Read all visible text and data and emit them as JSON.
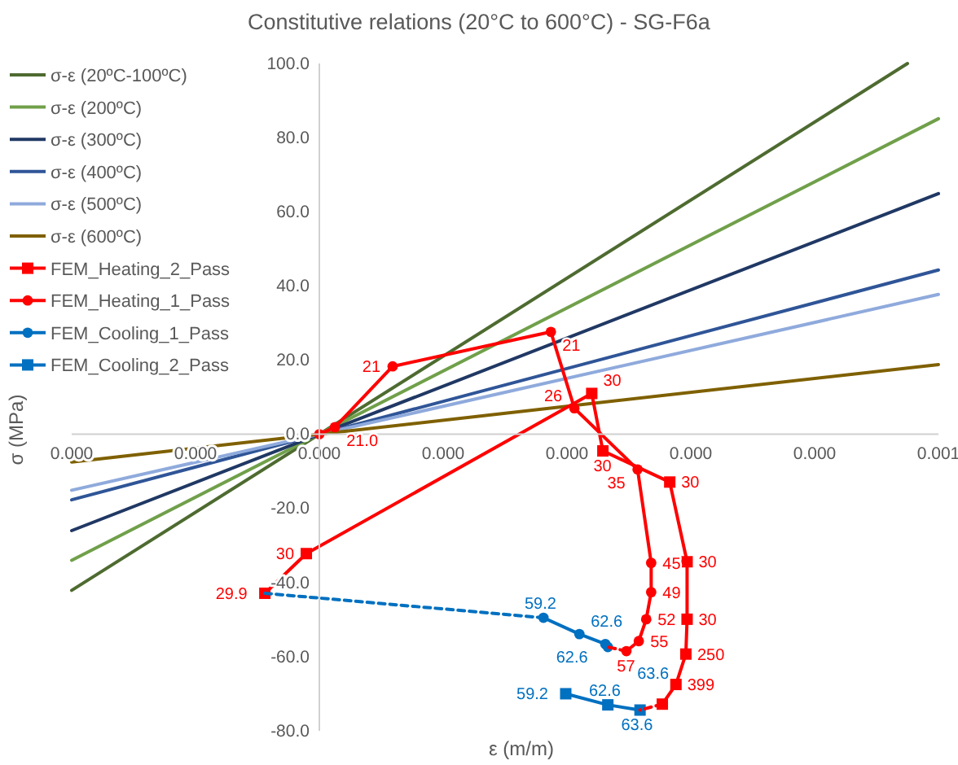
{
  "chart_data": {
    "type": "line",
    "title": "Constitutive relations (20°C to 600°C) - SG-F6a",
    "xlabel": "ε (m/m)",
    "ylabel": "σ (MPa)",
    "xlim": [
      -0.0002,
      0.0005
    ],
    "xticks": [
      {
        "value": -0.0002,
        "label": "0.000"
      },
      {
        "value": -0.0001,
        "label": "0.000"
      },
      {
        "value": 0,
        "label": "0.000"
      },
      {
        "value": 0.0001,
        "label": "0.000"
      },
      {
        "value": 0.0002,
        "label": "0.000"
      },
      {
        "value": 0.0003,
        "label": "0.000"
      },
      {
        "value": 0.0004,
        "label": "0.000"
      },
      {
        "value": 0.0005,
        "label": "0.001"
      }
    ],
    "ylim": [
      -80,
      100
    ],
    "yticks": [
      {
        "value": -80,
        "label": "-80.0"
      },
      {
        "value": -60,
        "label": "-60.0"
      },
      {
        "value": -40,
        "label": "-40.0"
      },
      {
        "value": -20,
        "label": "-20.0"
      },
      {
        "value": 0,
        "label": "0.0"
      },
      {
        "value": 20,
        "label": "20.0"
      },
      {
        "value": 40,
        "label": "40.0"
      },
      {
        "value": 60,
        "label": "60.0"
      },
      {
        "value": 80,
        "label": "80.0"
      },
      {
        "value": 100,
        "label": "100.0"
      }
    ],
    "grid": false,
    "legend": "left",
    "series": [
      {
        "name": "σ-ε (20ºC-100ºC)",
        "color": "#4e6b30",
        "marker": "none",
        "x": [
          -0.0002,
          0.000475
        ],
        "values": [
          -42.1,
          100
        ]
      },
      {
        "name": "σ-ε (200ºC)",
        "color": "#70a04a",
        "marker": "none",
        "x": [
          -0.0002,
          0.0005
        ],
        "values": [
          -34.0,
          85.1
        ]
      },
      {
        "name": "σ-ε (300ºC)",
        "color": "#203864",
        "marker": "none",
        "x": [
          -0.0002,
          0.0005
        ],
        "values": [
          -26.0,
          64.9
        ]
      },
      {
        "name": "σ-ε (400ºC)",
        "color": "#2f5597",
        "marker": "none",
        "x": [
          -0.0002,
          0.0005
        ],
        "values": [
          -17.7,
          44.3
        ]
      },
      {
        "name": "σ-ε (500ºC)",
        "color": "#8faadc",
        "marker": "none",
        "x": [
          -0.0002,
          0.0005
        ],
        "values": [
          -15.1,
          37.7
        ]
      },
      {
        "name": "σ-ε (600ºC)",
        "color": "#7f6000",
        "marker": "none",
        "x": [
          -0.0002,
          0.0005
        ],
        "values": [
          -7.5,
          18.8
        ]
      },
      {
        "name": "FEM_Heating_2_Pass",
        "color": "#ff0000",
        "marker": "square",
        "x": [
          -4.4e-05,
          -1.05e-05,
          0.00022,
          0.000229,
          0.000283,
          0.000297,
          0.000297,
          0.000296,
          0.000288,
          0.000277
        ],
        "values": [
          -42.9,
          -32.2,
          11.0,
          -4.5,
          -12.9,
          -34.4,
          -49.9,
          -59.3,
          -67.5,
          -72.8
        ]
      },
      {
        "name": "FEM_Heating_1_Pass",
        "color": "#ff0000",
        "marker": "circle",
        "x": [
          0,
          1.26e-05,
          5.92e-05,
          0.000187,
          0.000206,
          0.000257,
          0.000268,
          0.000268,
          0.000264,
          0.000258,
          0.000248
        ],
        "values": [
          0,
          1.9,
          18.3,
          27.6,
          7.0,
          -9.5,
          -34.7,
          -42.6,
          -49.9,
          -55.8,
          -58.5
        ]
      },
      {
        "name": "FEM_Cooling_1_Pass",
        "color": "#0070c0",
        "marker": "circle",
        "x": [
          0.000181,
          0.00021,
          0.000231,
          0.000233
        ],
        "values": [
          -49.5,
          -53.9,
          -56.6,
          -57.4
        ]
      },
      {
        "name": "FEM_Cooling_2_Pass",
        "color": "#0070c0",
        "marker": "square",
        "x": [
          0.000199,
          0.000233,
          0.000259
        ],
        "values": [
          -70.0,
          -73.0,
          -74.4
        ]
      },
      {
        "color": "#ff0000",
        "marker": "none",
        "line_style": "dashed",
        "x": [
          0.000248,
          0.000233
        ],
        "values": [
          -58.5,
          -57.4
        ]
      },
      {
        "color": "#0070c0",
        "marker": "none",
        "line_style": "dashed",
        "x": [
          -4.4e-05,
          0.000181
        ],
        "values": [
          -42.9,
          -49.5
        ]
      },
      {
        "color": "#ff0000",
        "marker": "none",
        "line_style": "dashed",
        "x": [
          0.000277,
          0.000259
        ],
        "values": [
          -72.8,
          -74.4
        ]
      }
    ],
    "annotations": [
      {
        "text": "29.9",
        "x": -4.4e-05,
        "y": -42.9
      },
      {
        "text": "30",
        "x": -1.05e-05,
        "y": -32.2
      },
      {
        "text": "30",
        "x": 0.00022,
        "y": 11.0
      },
      {
        "text": "30",
        "x": 0.000229,
        "y": -4.5
      },
      {
        "text": "30",
        "x": 0.000283,
        "y": -12.9
      },
      {
        "text": "30",
        "x": 0.000297,
        "y": -34.4
      },
      {
        "text": "30",
        "x": 0.000297,
        "y": -49.9
      },
      {
        "text": "250",
        "x": 0.000296,
        "y": -59.3
      },
      {
        "text": "399",
        "x": 0.000288,
        "y": -67.5
      },
      {
        "text": "21.0",
        "x": 1.26e-05,
        "y": 1.9
      },
      {
        "text": "21",
        "x": 5.92e-05,
        "y": 18.3
      },
      {
        "text": "21",
        "x": 0.000187,
        "y": 27.6
      },
      {
        "text": "26",
        "x": 0.000206,
        "y": 7.0
      },
      {
        "text": "35",
        "x": 0.000257,
        "y": -9.5
      },
      {
        "text": "45",
        "x": 0.000268,
        "y": -34.7
      },
      {
        "text": "49",
        "x": 0.000268,
        "y": -42.6
      },
      {
        "text": "52",
        "x": 0.000264,
        "y": -49.9
      },
      {
        "text": "55",
        "x": 0.000258,
        "y": -55.8
      },
      {
        "text": "57",
        "x": 0.000248,
        "y": -58.5
      },
      {
        "text": "59.2",
        "x": 0.000181,
        "y": -49.5
      },
      {
        "text": "62.6",
        "x": 0.00021,
        "y": -53.9
      },
      {
        "text": "62.6",
        "x": 0.000231,
        "y": -56.6
      },
      {
        "text": "63.6",
        "x": 0.000233,
        "y": -57.4
      },
      {
        "text": "59.2",
        "x": 0.000199,
        "y": -70.0
      },
      {
        "text": "62.6",
        "x": 0.000233,
        "y": -73.0
      },
      {
        "text": "63.6",
        "x": 0.000259,
        "y": -74.4
      }
    ]
  }
}
